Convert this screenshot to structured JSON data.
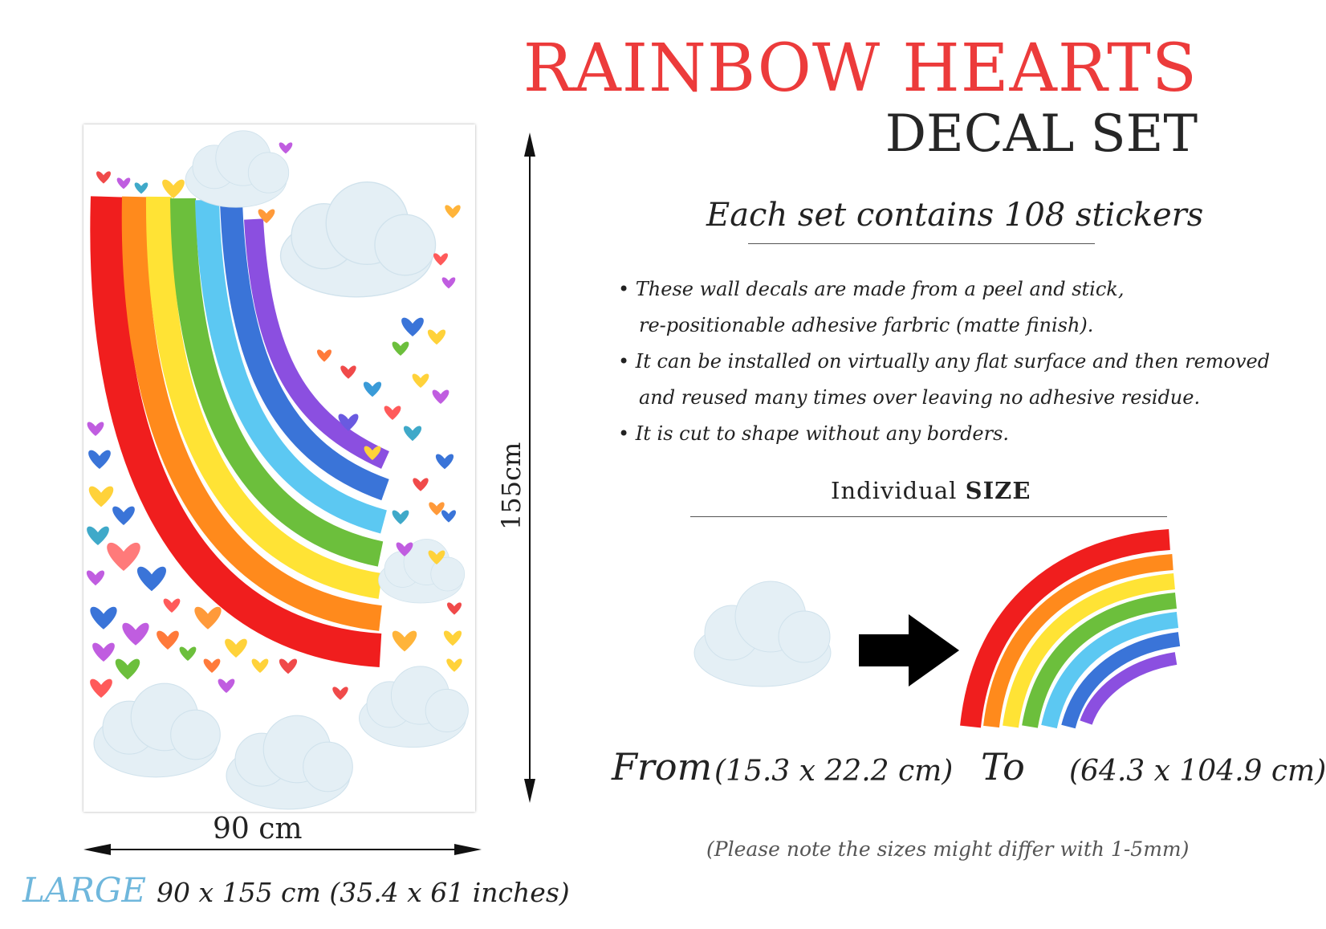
{
  "header": {
    "title": "RAINBOW HEARTS",
    "subtitle": "DECAL SET"
  },
  "set_count": "Each set contains 108 stickers",
  "features": [
    "• These wall decals are made from a peel and stick,",
    "re-positionable adhesive farbric (matte finish).",
    "• It can be installed on virtually any flat surface and then removed",
    "and reused many times over leaving no adhesive residue.",
    "• It is cut to shape without any borders."
  ],
  "size_heading": {
    "prefix": "Individual",
    "emphasis": "SIZE"
  },
  "range": {
    "from_label": "From",
    "from_value": "(15.3 x 22.2 cm)",
    "to_label": "To",
    "to_value": "(64.3 x 104.9 cm)"
  },
  "note": "(Please note the sizes might differ with 1-5mm)",
  "dimensions": {
    "height": "155cm",
    "width": "90 cm"
  },
  "size": {
    "name": "LARGE",
    "dims": "90 x 155 cm (35.4 x 61 inches)"
  },
  "colors": {
    "title_red": "#ec3b3b",
    "size_blue": "#6fb7dc",
    "rainbow": [
      "#f01e1e",
      "#ff8a1c",
      "#ffe335",
      "#6cbf3c",
      "#5cc8f2",
      "#3a74d8",
      "#8b4fe0"
    ],
    "cloud": "#e4eff5"
  }
}
